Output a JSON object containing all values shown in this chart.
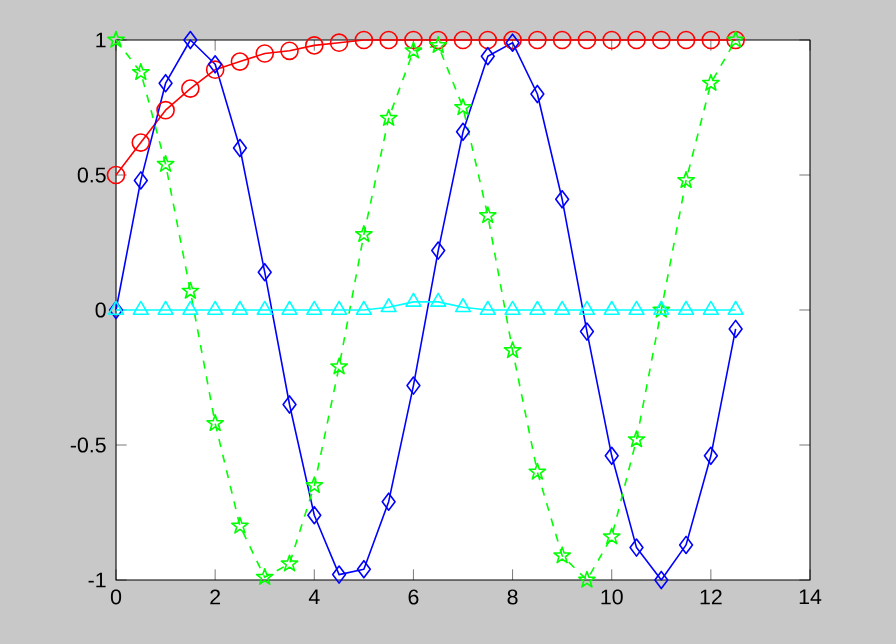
{
  "chart_data": {
    "type": "line",
    "x": [
      0,
      0.5,
      1,
      1.5,
      2,
      2.5,
      3,
      3.5,
      4,
      4.5,
      5,
      5.5,
      6,
      6.5,
      7,
      7.5,
      8,
      8.5,
      9,
      9.5,
      10,
      10.5,
      11,
      11.5,
      12,
      12.5
    ],
    "series": [
      {
        "color": "#ff0000",
        "marker": "circle",
        "line_style": "solid",
        "values": [
          0.5,
          0.62,
          0.74,
          0.82,
          0.89,
          0.92,
          0.95,
          0.96,
          0.98,
          0.99,
          1,
          1,
          1,
          1,
          1,
          1,
          1,
          1,
          1,
          1,
          1,
          1,
          1,
          1,
          1,
          1
        ]
      },
      {
        "color": "#0000ff",
        "marker": "diamond",
        "line_style": "solid",
        "values": [
          0,
          0.48,
          0.84,
          1.0,
          0.91,
          0.6,
          0.14,
          -0.35,
          -0.76,
          -0.98,
          -0.96,
          -0.71,
          -0.28,
          0.22,
          0.66,
          0.94,
          0.99,
          0.8,
          0.41,
          -0.08,
          -0.54,
          -0.88,
          -1.0,
          -0.87,
          -0.54,
          -0.07
        ]
      },
      {
        "color": "#00ff00",
        "marker": "star",
        "line_style": "dashed",
        "values": [
          1,
          0.88,
          0.54,
          0.07,
          -0.42,
          -0.8,
          -0.99,
          -0.94,
          -0.65,
          -0.21,
          0.28,
          0.71,
          0.96,
          0.98,
          0.75,
          0.35,
          -0.15,
          -0.6,
          -0.91,
          -1.0,
          -0.84,
          -0.48,
          0.0,
          0.48,
          0.84,
          1.0
        ]
      },
      {
        "color": "#00ffff",
        "marker": "triangle",
        "line_style": "solid",
        "values": [
          0,
          0,
          0,
          0,
          0,
          0,
          0,
          0,
          0,
          0,
          0,
          0.01,
          0.03,
          0.03,
          0.01,
          0,
          0,
          0,
          0,
          0,
          0,
          0,
          0,
          0,
          0,
          0
        ]
      }
    ],
    "xlim": [
      0,
      14
    ],
    "xticks": [
      0,
      2,
      4,
      6,
      8,
      10,
      12,
      14
    ],
    "ylim": [
      -1,
      1
    ],
    "yticks": [
      -1,
      {
        "value": -0.5,
        "label": "-0.5"
      },
      0,
      {
        "value": 0.5,
        "label": "0.5"
      },
      1
    ],
    "grid": false
  }
}
